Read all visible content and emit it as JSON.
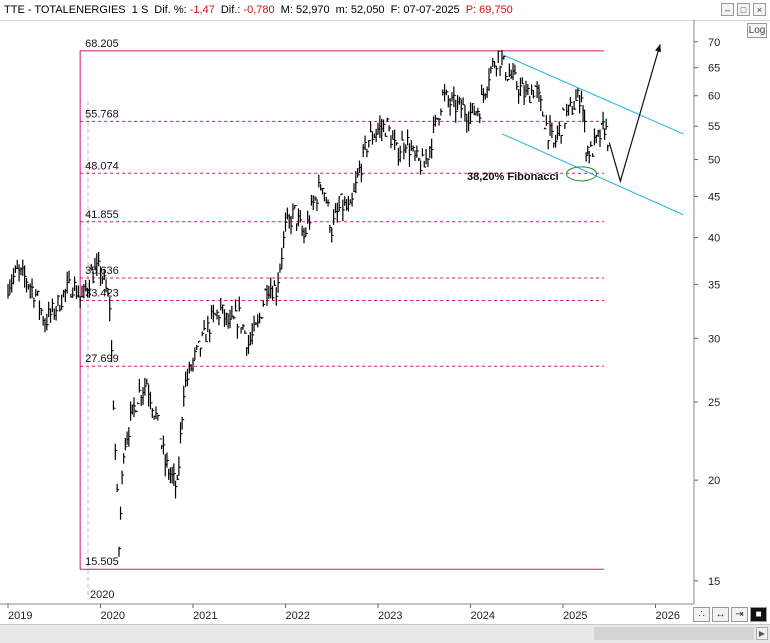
{
  "header": {
    "symbol": "TTE - TOTALENERGIES",
    "timeframe": "1 S",
    "diff_pct_label": "Dif. %:",
    "diff_pct_value": "-1,47",
    "diff_label": "Dif.:",
    "diff_value": "-0,780",
    "max_label": "M:",
    "max_value": "52,970",
    "min_label": "m:",
    "min_value": "52,050",
    "date_label": "F:",
    "date_value": "07-07-2025",
    "price_label": "P:",
    "price_value": "69,750"
  },
  "controls": {
    "log_label": "Log",
    "zoom_in_icon": "zoom-in-icon",
    "fit_icon": "fit-icon",
    "pin_icon": "pin-icon",
    "close_icon": "close-icon"
  },
  "colors": {
    "fib_lines": "#d6156f",
    "channel": "#1eb6e0",
    "price_bars": "#000000",
    "ellipse": "#2e8b2e",
    "header_red": "#d01010"
  },
  "chart_data": {
    "type": "line",
    "title": "",
    "xlabel": "",
    "ylabel": "",
    "y_scale": "log",
    "ylim": [
      14.2,
      74.5
    ],
    "y_ticks": [
      15,
      20,
      25,
      30,
      35,
      40,
      45,
      50,
      55,
      60,
      65,
      70
    ],
    "x_ticks": [
      "2019",
      "2020",
      "2021",
      "2022",
      "2023",
      "2024",
      "2025",
      "2026"
    ],
    "grid": false,
    "fibonacci_levels": [
      {
        "label": "68.205",
        "value": 68.205
      },
      {
        "label": "55.768",
        "value": 55.768
      },
      {
        "label": "48.074",
        "value": 48.074
      },
      {
        "label": "41.855",
        "value": 41.855
      },
      {
        "label": "35.636",
        "value": 35.636
      },
      {
        "label": "33.423",
        "value": 33.423
      },
      {
        "label": "27.699",
        "value": 27.699
      },
      {
        "label": "15.505",
        "value": 15.505
      }
    ],
    "fib_box_start_label": "2020",
    "annotation": "38,20% Fibonacci",
    "series": [
      {
        "values": [
          {
            "x": "2019.0",
            "y": 35.0
          },
          {
            "x": "2019.1",
            "y": 36.2
          },
          {
            "x": "2019.2",
            "y": 35.5
          },
          {
            "x": "2019.3",
            "y": 34.0
          },
          {
            "x": "2019.4",
            "y": 31.5
          },
          {
            "x": "2019.5",
            "y": 32.5
          },
          {
            "x": "2019.6",
            "y": 34.0
          },
          {
            "x": "2019.7",
            "y": 35.0
          },
          {
            "x": "2019.8",
            "y": 33.5
          },
          {
            "x": "2019.9",
            "y": 36.0
          },
          {
            "x": "2020.0",
            "y": 36.5
          },
          {
            "x": "2020.1",
            "y": 33.0
          },
          {
            "x": "2020.2",
            "y": 16.5
          },
          {
            "x": "2020.25",
            "y": 22.0
          },
          {
            "x": "2020.4",
            "y": 25.5
          },
          {
            "x": "2020.5",
            "y": 26.5
          },
          {
            "x": "2020.6",
            "y": 24.0
          },
          {
            "x": "2020.7",
            "y": 21.0
          },
          {
            "x": "2020.83",
            "y": 19.5
          },
          {
            "x": "2020.9",
            "y": 26.0
          },
          {
            "x": "2021.0",
            "y": 28.0
          },
          {
            "x": "2021.2",
            "y": 31.5
          },
          {
            "x": "2021.3",
            "y": 32.5
          },
          {
            "x": "2021.4",
            "y": 31.0
          },
          {
            "x": "2021.5",
            "y": 32.0
          },
          {
            "x": "2021.6",
            "y": 29.5
          },
          {
            "x": "2021.7",
            "y": 31.0
          },
          {
            "x": "2021.8",
            "y": 35.0
          },
          {
            "x": "2021.9",
            "y": 34.5
          },
          {
            "x": "2022.0",
            "y": 41.0
          },
          {
            "x": "2022.1",
            "y": 43.0
          },
          {
            "x": "2022.2",
            "y": 40.0
          },
          {
            "x": "2022.3",
            "y": 44.0
          },
          {
            "x": "2022.4",
            "y": 47.0
          },
          {
            "x": "2022.5",
            "y": 41.0
          },
          {
            "x": "2022.6",
            "y": 44.0
          },
          {
            "x": "2022.7",
            "y": 43.0
          },
          {
            "x": "2022.8",
            "y": 48.5
          },
          {
            "x": "2022.9",
            "y": 53.0
          },
          {
            "x": "2023.0",
            "y": 54.5
          },
          {
            "x": "2023.1",
            "y": 55.0
          },
          {
            "x": "2023.2",
            "y": 51.0
          },
          {
            "x": "2023.3",
            "y": 53.0
          },
          {
            "x": "2023.4",
            "y": 50.0
          },
          {
            "x": "2023.5",
            "y": 49.0
          },
          {
            "x": "2023.6",
            "y": 54.0
          },
          {
            "x": "2023.7",
            "y": 60.0
          },
          {
            "x": "2023.8",
            "y": 58.5
          },
          {
            "x": "2023.9",
            "y": 58.0
          },
          {
            "x": "2024.0",
            "y": 57.0
          },
          {
            "x": "2024.1",
            "y": 58.0
          },
          {
            "x": "2024.2",
            "y": 64.0
          },
          {
            "x": "2024.3",
            "y": 67.5
          },
          {
            "x": "2024.4",
            "y": 64.0
          },
          {
            "x": "2024.5",
            "y": 62.0
          },
          {
            "x": "2024.6",
            "y": 60.0
          },
          {
            "x": "2024.7",
            "y": 61.5
          },
          {
            "x": "2024.8",
            "y": 56.0
          },
          {
            "x": "2024.9",
            "y": 52.0
          },
          {
            "x": "2025.0",
            "y": 56.0
          },
          {
            "x": "2025.1",
            "y": 58.0
          },
          {
            "x": "2025.2",
            "y": 60.5
          },
          {
            "x": "2025.25",
            "y": 52.0
          },
          {
            "x": "2025.3",
            "y": 51.0
          },
          {
            "x": "2025.4",
            "y": 53.5
          },
          {
            "x": "2025.45",
            "y": 55.0
          },
          {
            "x": "2025.5",
            "y": 52.5
          }
        ]
      }
    ],
    "channel": {
      "upper": [
        {
          "x": "2024.3",
          "y": 67.5
        },
        {
          "x": "2026.3",
          "y": 53.8
        }
      ],
      "lower": [
        {
          "x": "2024.3",
          "y": 53.8
        },
        {
          "x": "2026.3",
          "y": 42.7
        }
      ]
    },
    "forecast_arrow": [
      {
        "x": "2025.5",
        "y": 52.5
      },
      {
        "x": "2025.62",
        "y": 47.0
      },
      {
        "x": "2026.05",
        "y": 69.5
      }
    ],
    "ellipse_center": {
      "x": "2025.2",
      "y": 48.0
    }
  }
}
